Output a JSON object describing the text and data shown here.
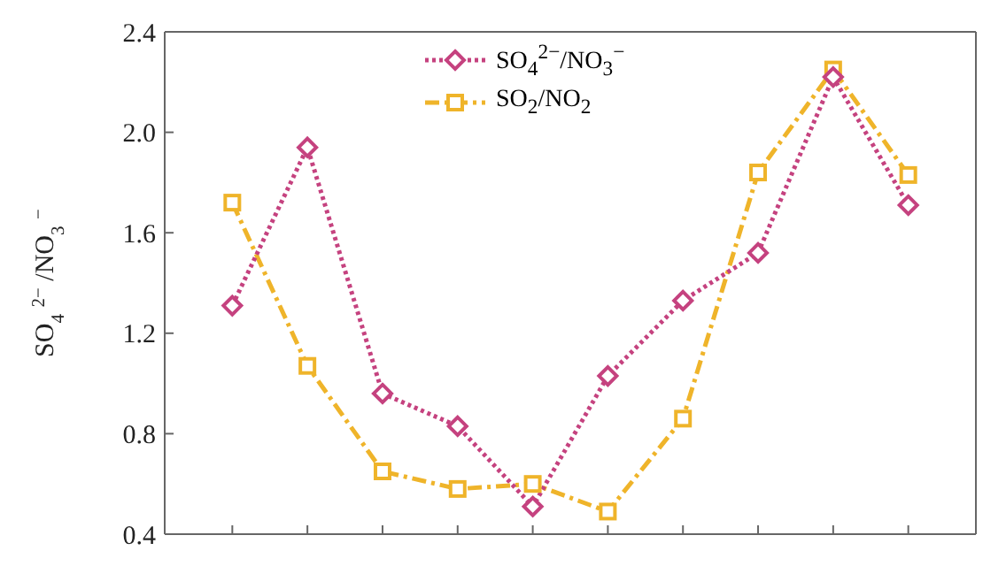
{
  "chart_data": {
    "type": "line",
    "ylabel": "SO$_{4}$$^{2−}$/NO$_{3}$$^{−}$",
    "categories": [
      null,
      null,
      null,
      null,
      null,
      null,
      null,
      null,
      null,
      null
    ],
    "ylim": [
      0.4,
      2.4
    ],
    "yticks": [
      {
        "value": 0.4,
        "label": "0.4"
      },
      {
        "value": 0.8,
        "label": "0.8"
      },
      {
        "value": 1.2,
        "label": "1.2"
      },
      {
        "value": 1.6,
        "label": "1.6"
      },
      {
        "value": 2.0,
        "label": "2.0"
      },
      {
        "value": 2.4,
        "label": "2.4"
      }
    ],
    "legend": "top",
    "grid": false,
    "series": [
      {
        "name": "SO$_{4}$$^{2−}$/NO$_{3}$$^{−}$",
        "color": "#c5427f",
        "marker": "diamond",
        "line_style": "dotted",
        "values": [
          1.31,
          1.94,
          0.96,
          0.83,
          0.51,
          1.03,
          1.33,
          1.52,
          2.22,
          1.71
        ]
      },
      {
        "name": "SO$_{2}$/NO$_{2}$",
        "color": "#efb42a",
        "marker": "square",
        "line_style": "dashed",
        "values": [
          1.72,
          1.07,
          0.65,
          0.58,
          0.6,
          0.49,
          0.86,
          1.84,
          2.25,
          1.83
        ]
      }
    ]
  }
}
